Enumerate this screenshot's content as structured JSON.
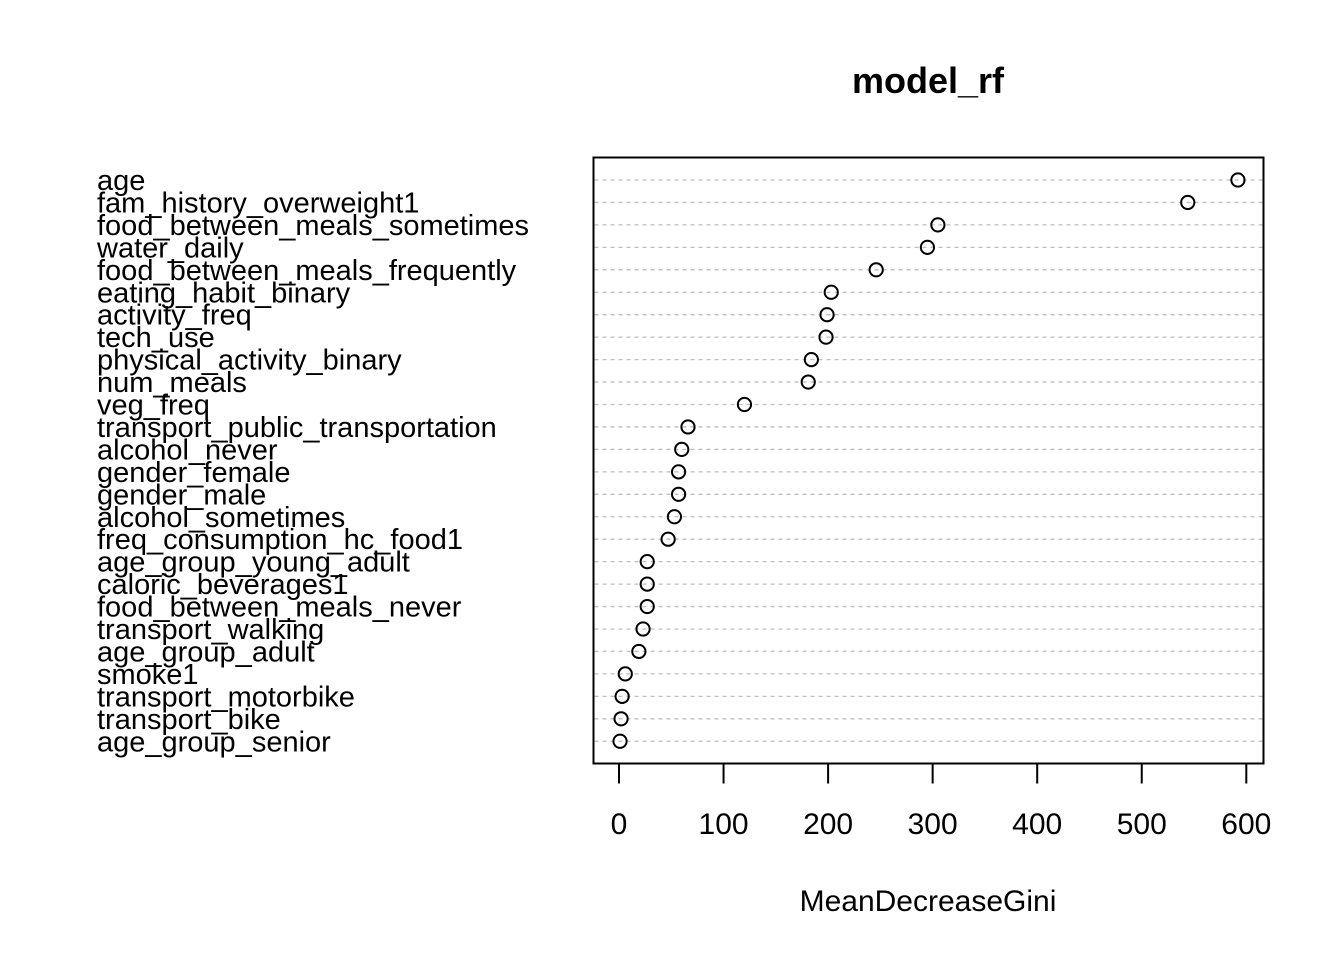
{
  "chart_data": {
    "type": "scatter",
    "title": "model_rf",
    "xlabel": "MeanDecreaseGini",
    "ylabel": "",
    "xlim": [
      -24,
      620
    ],
    "xticks": [
      "0",
      "100",
      "200",
      "300",
      "400",
      "500",
      "600"
    ],
    "grid": true,
    "marker": "open-circle",
    "categories": [
      "age",
      "fam_history_overweight1",
      "food_between_meals_sometimes",
      "water_daily",
      "food_between_meals_frequently",
      "eating_habit_binary",
      "activity_freq",
      "tech_use",
      "physical_activity_binary",
      "num_meals",
      "veg_freq",
      "transport_public_transportation",
      "alcohol_never",
      "gender_female",
      "gender_male",
      "alcohol_sometimes",
      "freq_consumption_hc_food1",
      "age_group_young_adult",
      "caloric_beverages1",
      "food_between_meals_never",
      "transport_walking",
      "age_group_adult",
      "smoke1",
      "transport_motorbike",
      "transport_bike",
      "age_group_senior"
    ],
    "values": [
      592,
      544,
      305,
      295,
      246,
      203,
      199,
      198,
      184,
      181,
      120,
      66,
      60,
      57,
      57,
      53,
      47,
      27,
      27,
      27,
      23,
      19,
      6,
      3,
      2,
      1
    ]
  },
  "colors": {
    "background": "#ffffff",
    "axis": "#000000",
    "grid": "#bebebe",
    "marker": "#000000"
  }
}
